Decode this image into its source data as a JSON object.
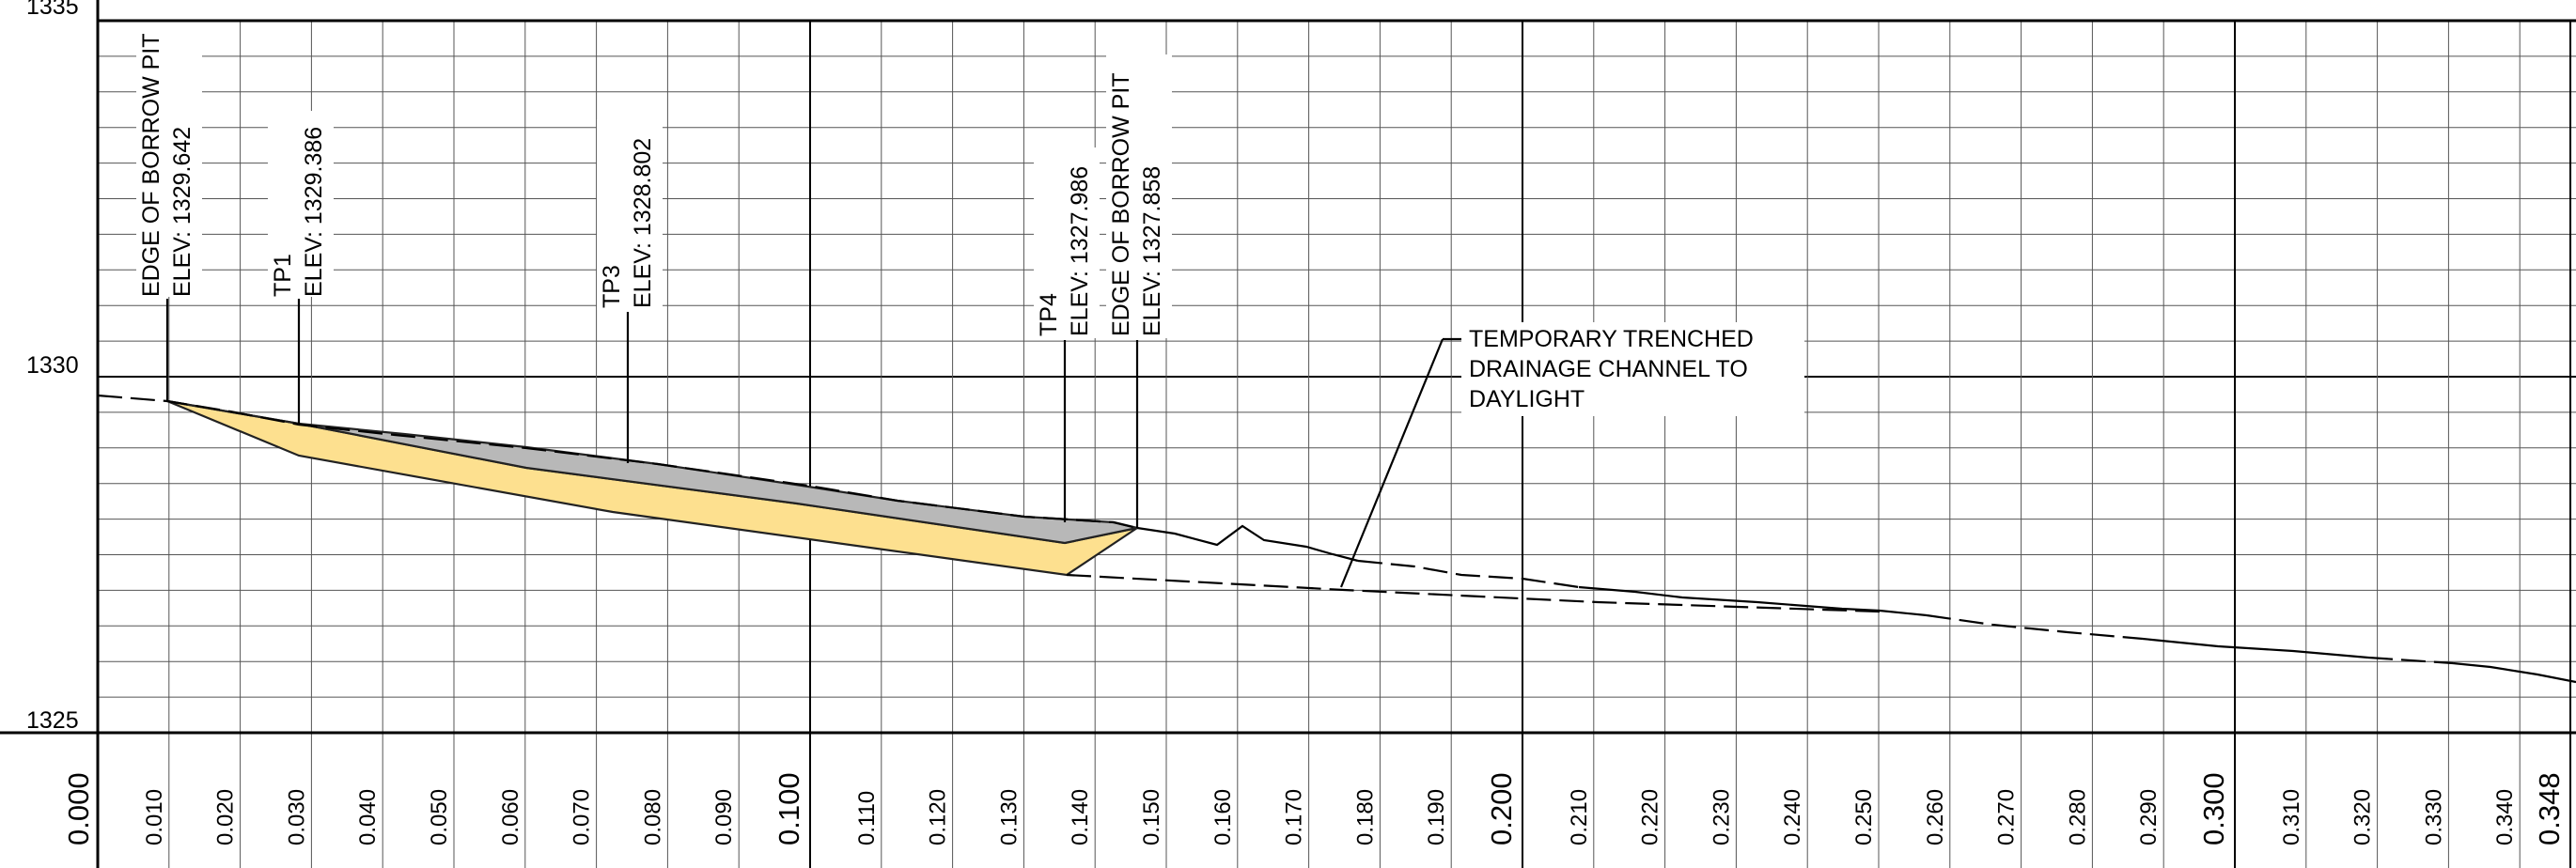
{
  "y_axis": {
    "labels": [
      "1335",
      "1330",
      "1325"
    ],
    "values": [
      1335,
      1330,
      1325
    ]
  },
  "x_axis": {
    "ticks": [
      "0.000",
      "0.010",
      "0.020",
      "0.030",
      "0.040",
      "0.050",
      "0.060",
      "0.070",
      "0.080",
      "0.090",
      "0.100",
      "0.110",
      "0.120",
      "0.130",
      "0.140",
      "0.150",
      "0.160",
      "0.170",
      "0.180",
      "0.190",
      "0.200",
      "0.210",
      "0.220",
      "0.230",
      "0.240",
      "0.250",
      "0.260",
      "0.270",
      "0.280",
      "0.290",
      "0.300",
      "0.310",
      "0.320",
      "0.330",
      "0.340",
      "0.348"
    ],
    "major_ticks": [
      "0.000",
      "0.100",
      "0.200",
      "0.300",
      "0.348"
    ]
  },
  "labels": [
    {
      "id": "edge-borrow-pit-left",
      "line1": "EDGE OF BORROW PIT",
      "line2": "ELEV: 1329.642"
    },
    {
      "id": "tp1",
      "line1": "TP1",
      "line2": "ELEV: 1329.386"
    },
    {
      "id": "tp3",
      "line1": "TP3",
      "line2": "ELEV: 1328.802"
    },
    {
      "id": "tp4",
      "line1": "TP4",
      "line2": "ELEV: 1327.986"
    },
    {
      "id": "edge-borrow-pit-right",
      "line1": "EDGE OF BORROW PIT",
      "line2": "ELEV: 1327.858"
    }
  ],
  "callout": {
    "line1": "TEMPORARY TRENCHED",
    "line2": "DRAINAGE CHANNEL TO",
    "line3": "DAYLIGHT"
  },
  "colors": {
    "fill_material": "#fde08f",
    "fill_removed": "#b8b8b8"
  }
}
